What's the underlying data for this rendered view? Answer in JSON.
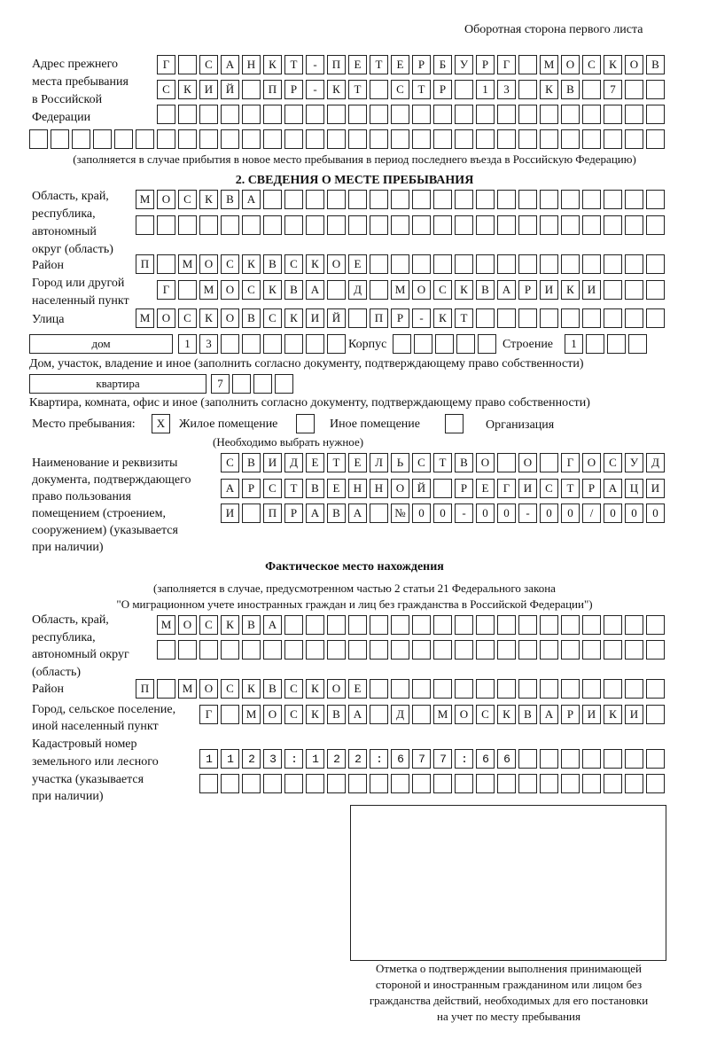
{
  "header": "Оборотная сторона первого листа",
  "prev_address": {
    "label": [
      "Адрес прежнего",
      "места пребывания",
      "в Российской",
      "Федерации"
    ],
    "rows": [
      "Г САНКТ-ПЕТЕРБУРГ МОСКОВ",
      "СКИЙ ПР-КТ СТР 13 КВ 7  ",
      "                        ",
      "                              "
    ],
    "note": "(заполняется в случае прибытия в новое место пребывания в период последнего въезда в Российскую Федерацию)"
  },
  "section2": {
    "title": "2. СВЕДЕНИЯ О МЕСТЕ ПРЕБЫВАНИЯ",
    "region_label": [
      "Область, край,",
      "республика,",
      "автономный",
      "округ (область)"
    ],
    "region_rows": [
      "МОСКВА                   ",
      "                         "
    ],
    "district_label": "Район",
    "district_row": "П МОСКВСКОЕ              ",
    "city_label": [
      "Город или другой",
      "населенный пункт"
    ],
    "city_row": "Г МОСКВА Д МОСКВАРИКИ   ",
    "street_label": "Улица",
    "street_row": "МОСКОВСКИЙ ПР-КТ         ",
    "house_type": "дом",
    "house_row": "13      ",
    "korpus_label": "Корпус",
    "korpus_row": "     ",
    "stroenie_label": "Строение",
    "stroenie_row": "1   ",
    "house_note": "Дом, участок, владение и иное (заполнить согласно документу, подтверждающему право собственности)",
    "flat_type": "квартира",
    "flat_row": "7   ",
    "flat_note": "Квартира, комната, офис и иное (заполнить согласно документу, подтверждающему право собственности)",
    "place_label": "Место пребывания:",
    "options": [
      {
        "label": "Жилое помещение",
        "mark": "X"
      },
      {
        "label": "Иное помещение",
        "mark": ""
      },
      {
        "label": "Организация",
        "mark": ""
      }
    ],
    "place_note": "(Необходимо выбрать нужное)",
    "doc_label": [
      "Наименование и реквизиты",
      "документа, подтверждающего",
      "право пользования",
      "помещением (строением,",
      "сооружением) (указывается",
      "при наличии)"
    ],
    "doc_rows": [
      "СВИДЕТЕЛЬСТВО О ГОСУД",
      "АРСТВЕННОЙ РЕГИСТРАЦИ",
      "И ПРАВА №00-00-00/000"
    ]
  },
  "actual": {
    "title": "Фактическое место нахождения",
    "note": [
      "(заполняется в случае, предусмотренном частью 2 статьи 21 Федерального закона",
      "\"О миграционном учете иностранных граждан и лиц без гражданства в Российской Федерации\")"
    ],
    "region_label": [
      "Область, край,",
      "республика,",
      "автономный округ",
      "(область)"
    ],
    "region_rows": [
      "МОСКВА                  ",
      "                        "
    ],
    "district_label": "Район",
    "district_row": "П МОСКВСКОЕ              ",
    "city_label": [
      "Город, сельское поселение,",
      "иной населенный пункт"
    ],
    "city_row": "Г МОСКВА Д МОСКВАРИКИ ",
    "cadastre_label": [
      "Кадастровый номер",
      "земельного или лесного",
      "участка (указывается",
      "при наличии)"
    ],
    "cadastre_rows": [
      "1123:122:677:66       ",
      "                      "
    ]
  },
  "signature_note": [
    "Отметка о подтверждении выполнения принимающей",
    "стороной и иностранным гражданином или лицом без",
    "гражданства действий, необходимых для его постановки",
    "на учет по месту пребывания"
  ]
}
